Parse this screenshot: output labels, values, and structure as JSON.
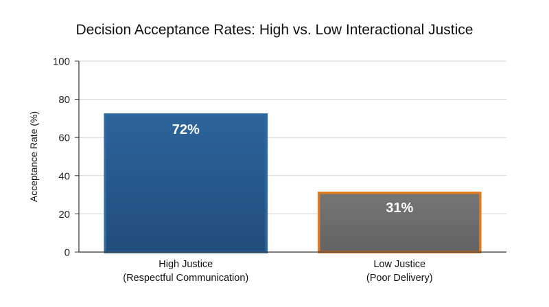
{
  "chart_data": {
    "type": "bar",
    "title": "Decision Acceptance Rates: High vs. Low Interactional Justice",
    "xlabel": "",
    "ylabel": "Acceptance Rate (%)",
    "ylim": [
      0,
      100
    ],
    "yticks": [
      0,
      20,
      40,
      60,
      80,
      100
    ],
    "grid": true,
    "categories": [
      [
        "High Justice",
        "(Respectful Communication)"
      ],
      [
        "Low Justice",
        "(Poor Delivery)"
      ]
    ],
    "values": [
      72,
      31
    ],
    "data_labels": [
      "72%",
      "31%"
    ],
    "colors": {
      "fill": [
        "#2a5d8f",
        "#6b6b6b"
      ],
      "border": [
        "#2e6aa3",
        "#e07b22"
      ]
    }
  }
}
